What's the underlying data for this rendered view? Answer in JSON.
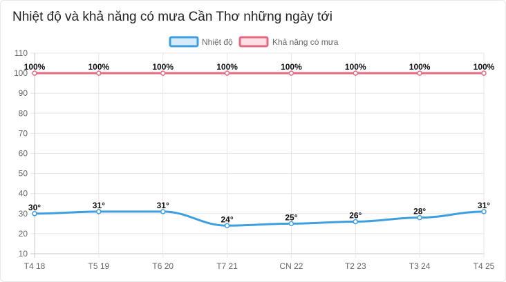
{
  "title": "Nhiệt độ và khả năng có mưa Cần Thơ những ngày tới",
  "chart_data": {
    "type": "line",
    "categories": [
      "T4 18",
      "T5 19",
      "T6 20",
      "T7 21",
      "CN 22",
      "T2 23",
      "T3 24",
      "T4 25"
    ],
    "ylim": [
      10,
      110
    ],
    "yticks": [
      10,
      20,
      30,
      40,
      50,
      60,
      70,
      80,
      90,
      100,
      110
    ],
    "grid": true,
    "legend": "top-center",
    "series": [
      {
        "name": "Nhiệt độ",
        "values": [
          30,
          31,
          31,
          24,
          25,
          26,
          28,
          31
        ],
        "labels": [
          "30°",
          "31°",
          "31°",
          "24°",
          "25°",
          "26°",
          "28°",
          "31°"
        ],
        "color": "#3d9ee0",
        "fill": "#d6eaf8"
      },
      {
        "name": "Khả năng có mưa",
        "values": [
          100,
          100,
          100,
          100,
          100,
          100,
          100,
          100
        ],
        "labels": [
          "100%",
          "100%",
          "100%",
          "100%",
          "100%",
          "100%",
          "100%",
          "100%"
        ],
        "color": "#e5687f",
        "fill": "#fbe1e6"
      }
    ]
  }
}
